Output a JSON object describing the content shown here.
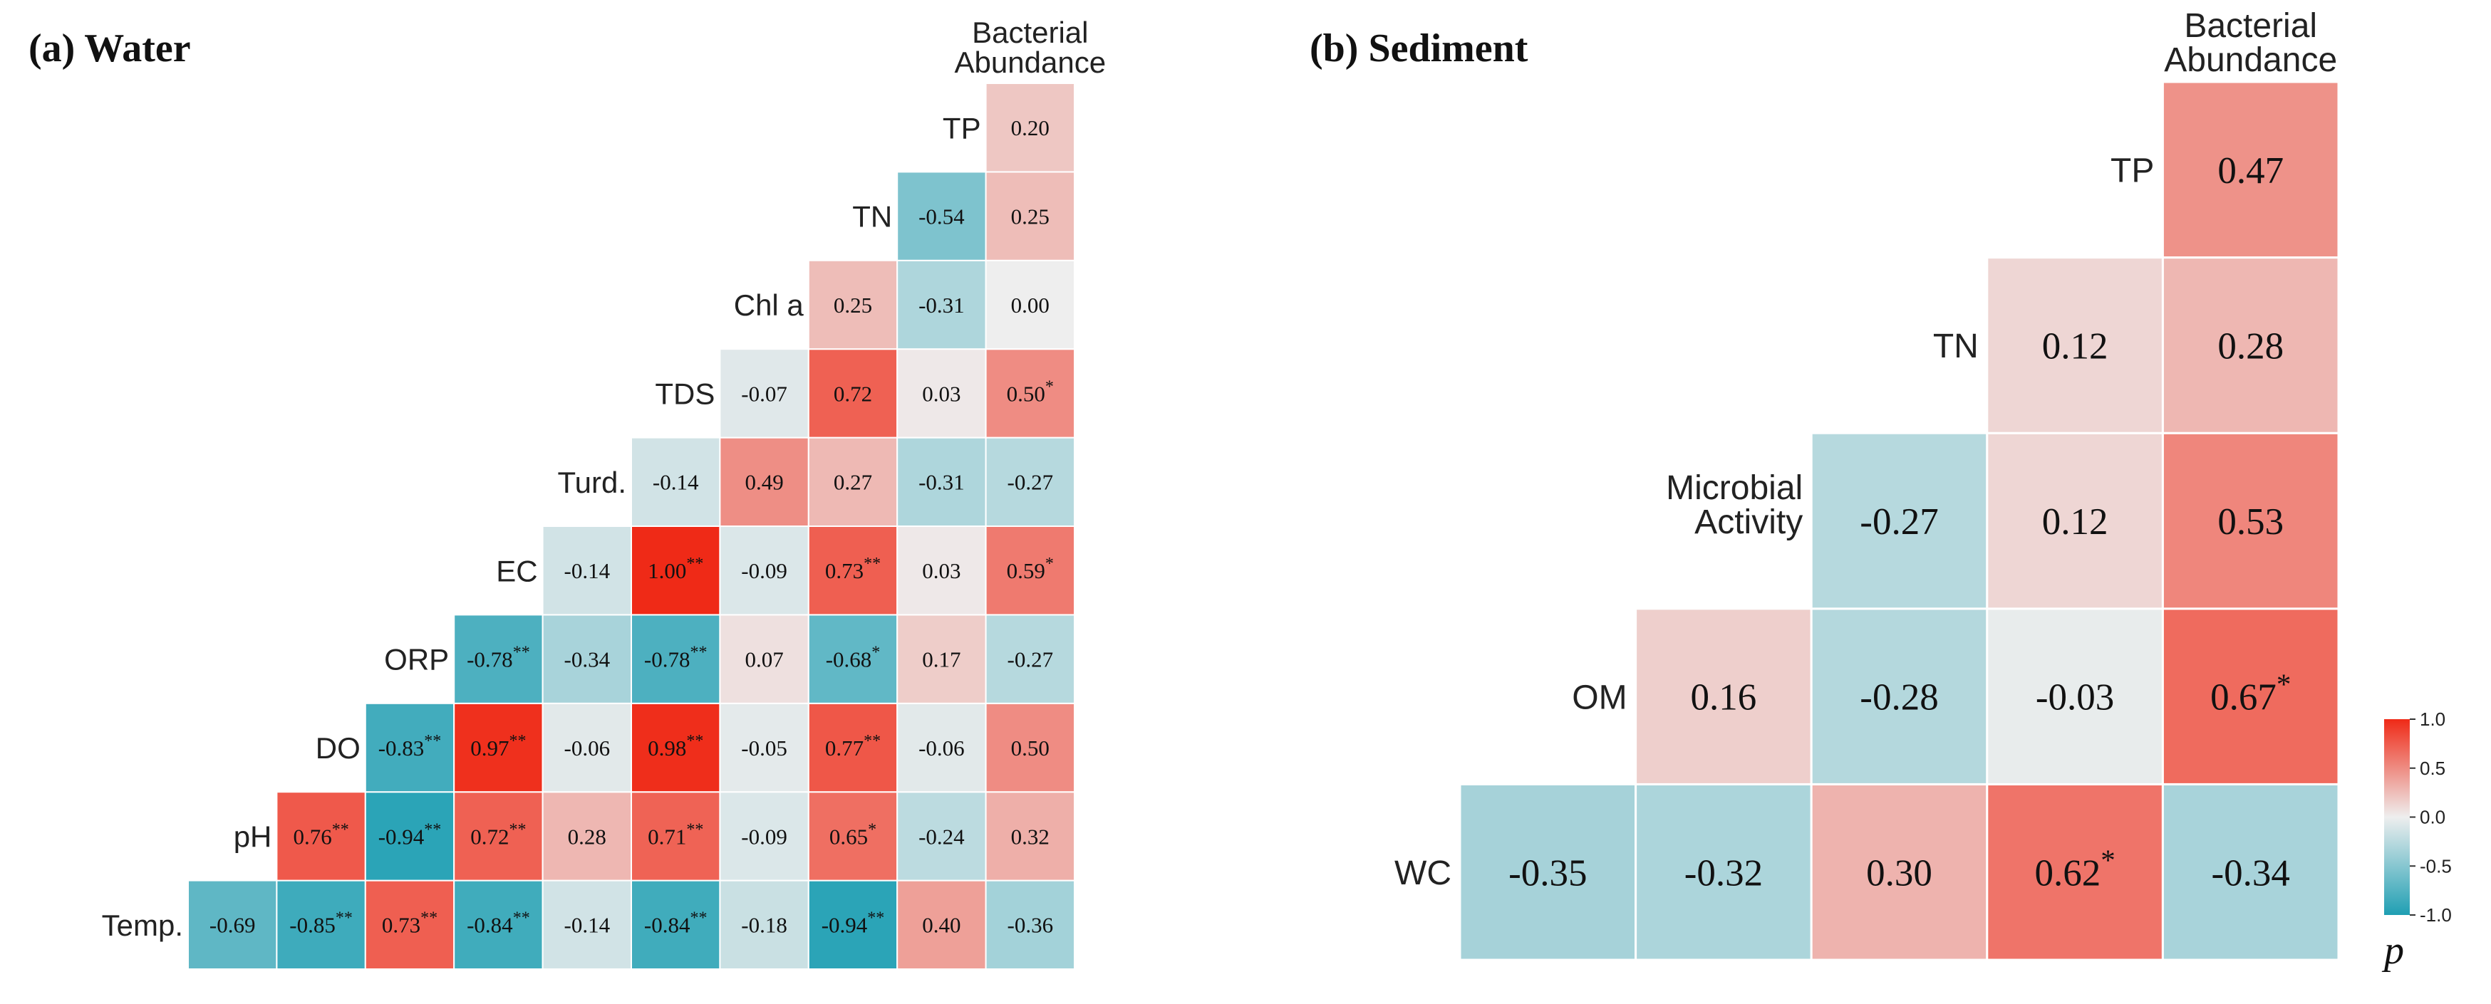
{
  "chart_data": [
    {
      "type": "heatmap",
      "title": "(a) Water",
      "variables": [
        "Temp.",
        "pH",
        "DO",
        "ORP",
        "EC",
        "Turd.",
        "TDS",
        "Chl a",
        "TN",
        "TP",
        "Bacterial Abundance"
      ],
      "column_header": [
        "Bacterial",
        "Abundance"
      ],
      "cells": [
        [
          {
            "v": "-0.69",
            "s": ""
          },
          {
            "v": "-0.85",
            "s": "**"
          },
          {
            "v": "0.73",
            "s": "**"
          },
          {
            "v": "-0.84",
            "s": "**"
          },
          {
            "v": "-0.14",
            "s": ""
          },
          {
            "v": "-0.84",
            "s": "**"
          },
          {
            "v": "-0.18",
            "s": ""
          },
          {
            "v": "-0.94",
            "s": "**"
          },
          {
            "v": "0.40",
            "s": ""
          },
          {
            "v": "-0.36",
            "s": ""
          }
        ],
        [
          {
            "v": "0.76",
            "s": "**"
          },
          {
            "v": "-0.94",
            "s": "**"
          },
          {
            "v": "0.72",
            "s": "**"
          },
          {
            "v": "0.28",
            "s": ""
          },
          {
            "v": "0.71",
            "s": "**"
          },
          {
            "v": "-0.09",
            "s": ""
          },
          {
            "v": "0.65",
            "s": "*"
          },
          {
            "v": "-0.24",
            "s": ""
          },
          {
            "v": "0.32",
            "s": ""
          }
        ],
        [
          {
            "v": "-0.83",
            "s": "**"
          },
          {
            "v": "0.97",
            "s": "**"
          },
          {
            "v": "-0.06",
            "s": ""
          },
          {
            "v": "0.98",
            "s": "**"
          },
          {
            "v": "-0.05",
            "s": ""
          },
          {
            "v": "0.77",
            "s": "**"
          },
          {
            "v": "-0.06",
            "s": ""
          },
          {
            "v": "0.50",
            "s": ""
          }
        ],
        [
          {
            "v": "-0.78",
            "s": "**"
          },
          {
            "v": "-0.34",
            "s": ""
          },
          {
            "v": "-0.78",
            "s": "**"
          },
          {
            "v": "0.07",
            "s": ""
          },
          {
            "v": "-0.68",
            "s": "*"
          },
          {
            "v": "0.17",
            "s": ""
          },
          {
            "v": "-0.27",
            "s": ""
          }
        ],
        [
          {
            "v": "-0.14",
            "s": ""
          },
          {
            "v": "1.00",
            "s": "**"
          },
          {
            "v": "-0.09",
            "s": ""
          },
          {
            "v": "0.73",
            "s": "**"
          },
          {
            "v": "0.03",
            "s": ""
          },
          {
            "v": "0.59",
            "s": "*"
          }
        ],
        [
          {
            "v": "-0.14",
            "s": ""
          },
          {
            "v": "0.49",
            "s": ""
          },
          {
            "v": "0.27",
            "s": ""
          },
          {
            "v": "-0.31",
            "s": ""
          },
          {
            "v": "-0.27",
            "s": ""
          }
        ],
        [
          {
            "v": "-0.07",
            "s": ""
          },
          {
            "v": "0.72",
            "s": ""
          },
          {
            "v": "0.03",
            "s": ""
          },
          {
            "v": "0.50",
            "s": "*"
          }
        ],
        [
          {
            "v": "0.25",
            "s": ""
          },
          {
            "v": "-0.31",
            "s": ""
          },
          {
            "v": "0.00",
            "s": ""
          }
        ],
        [
          {
            "v": "-0.54",
            "s": ""
          },
          {
            "v": "0.25",
            "s": ""
          }
        ],
        [
          {
            "v": "0.20",
            "s": ""
          }
        ]
      ]
    },
    {
      "type": "heatmap",
      "title": "(b) Sediment",
      "variables": [
        "WC",
        "OM",
        "Microbial Activity",
        "TN",
        "TP",
        "Bacterial Abundance"
      ],
      "column_header": [
        "Bacterial",
        "Abundance"
      ],
      "cells": [
        [
          {
            "v": "-0.35",
            "s": ""
          },
          {
            "v": "-0.32",
            "s": ""
          },
          {
            "v": "0.30",
            "s": ""
          },
          {
            "v": "0.62",
            "s": "*"
          },
          {
            "v": "-0.34",
            "s": ""
          }
        ],
        [
          {
            "v": "0.16",
            "s": ""
          },
          {
            "v": "-0.28",
            "s": ""
          },
          {
            "v": "-0.03",
            "s": ""
          },
          {
            "v": "0.67",
            "s": "*"
          }
        ],
        [
          {
            "v": "-0.27",
            "s": ""
          },
          {
            "v": "0.12",
            "s": ""
          },
          {
            "v": "0.53",
            "s": ""
          }
        ],
        [
          {
            "v": "0.12",
            "s": ""
          },
          {
            "v": "0.28",
            "s": ""
          }
        ],
        [
          {
            "v": "0.47",
            "s": ""
          }
        ]
      ]
    }
  ],
  "legend": {
    "title": "p",
    "ticks": [
      "1.0",
      "0.5",
      "0.0",
      "-0.5",
      "-1.0"
    ],
    "tick_values": [
      1.0,
      0.5,
      0.0,
      -0.5,
      -1.0
    ],
    "range": [
      -1.0,
      1.0
    ]
  },
  "colors": {
    "positive": "#ef2a17",
    "neutral": "#eeeeee",
    "negative": "#1f9fb3"
  }
}
